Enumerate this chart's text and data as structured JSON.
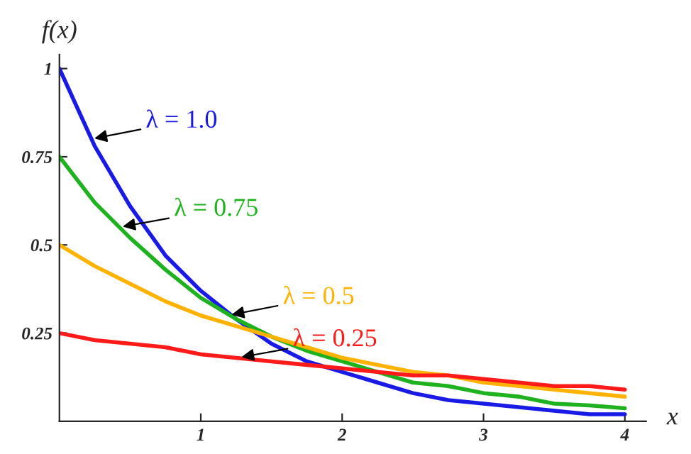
{
  "chart_data": {
    "type": "line",
    "xlabel": "x",
    "ylabel": "f(x)",
    "x": [
      0,
      0.25,
      0.5,
      0.75,
      1,
      1.25,
      1.5,
      1.75,
      2,
      2.25,
      2.5,
      2.75,
      3,
      3.25,
      3.5,
      3.75,
      4
    ],
    "series": [
      {
        "color": "#1a1ae6",
        "values": [
          1,
          0.78,
          0.61,
          0.47,
          0.37,
          0.29,
          0.22,
          0.17,
          0.14,
          0.11,
          0.08,
          0.06,
          0.05,
          0.04,
          0.03,
          0.02,
          0.02
        ]
      },
      {
        "color": "#1fb21f",
        "values": [
          0.75,
          0.62,
          0.52,
          0.43,
          0.35,
          0.29,
          0.24,
          0.2,
          0.17,
          0.14,
          0.11,
          0.1,
          0.08,
          0.07,
          0.05,
          0.045,
          0.037
        ]
      },
      {
        "color": "#ffb300",
        "values": [
          0.5,
          0.44,
          0.39,
          0.34,
          0.3,
          0.27,
          0.24,
          0.21,
          0.18,
          0.16,
          0.14,
          0.13,
          0.11,
          0.1,
          0.09,
          0.08,
          0.07
        ]
      },
      {
        "color": "#ff1a1a",
        "values": [
          0.25,
          0.23,
          0.22,
          0.21,
          0.19,
          0.18,
          0.17,
          0.16,
          0.15,
          0.14,
          0.13,
          0.13,
          0.12,
          0.11,
          0.1,
          0.1,
          0.09
        ]
      }
    ],
    "annotations": [
      {
        "text": "λ = 1.0",
        "x": 0.22,
        "y": 0.8
      },
      {
        "text": "λ = 0.75",
        "x": 0.42,
        "y": 0.55
      },
      {
        "text": "λ = 0.5",
        "x": 1.19,
        "y": 0.3
      },
      {
        "text": "λ = 0.25",
        "x": 1.26,
        "y": 0.18
      }
    ],
    "xlim": [
      0,
      4.15
    ],
    "ylim": [
      0,
      1.04
    ],
    "xticks": [
      1,
      2,
      3,
      4
    ],
    "yticks": [
      0.25,
      0.5,
      0.75,
      1
    ],
    "grid": false,
    "legend": false,
    "line_style": "solid",
    "marker": "none"
  }
}
